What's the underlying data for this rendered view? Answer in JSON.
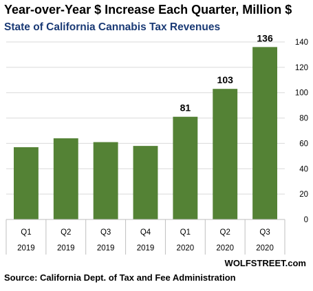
{
  "chart_data": {
    "type": "bar",
    "title": "Year-over-Year $ Increase Each Quarter, Million $",
    "subtitle": "State of California Cannabis Tax Revenues",
    "categories": [
      {
        "quarter": "Q1",
        "year": "2019"
      },
      {
        "quarter": "Q2",
        "year": "2019"
      },
      {
        "quarter": "Q3",
        "year": "2019"
      },
      {
        "quarter": "Q4",
        "year": "2019"
      },
      {
        "quarter": "Q1",
        "year": "2020"
      },
      {
        "quarter": "Q2",
        "year": "2020"
      },
      {
        "quarter": "Q3",
        "year": "2020"
      }
    ],
    "values": [
      57,
      64,
      61,
      58,
      81,
      103,
      136
    ],
    "data_labels": [
      "",
      "",
      "",
      "",
      "81",
      "103",
      "136"
    ],
    "y_ticks": [
      "0",
      "20",
      "40",
      "60",
      "80",
      "100",
      "120",
      "140"
    ],
    "ylim": [
      0,
      140
    ],
    "grid": true,
    "axis_position": "right",
    "bar_color": "#548235",
    "grid_color": "#d9d9d9"
  },
  "credit": "WOLFSTREET.com",
  "source": "Source: California Dept. of Tax and Fee Administration"
}
